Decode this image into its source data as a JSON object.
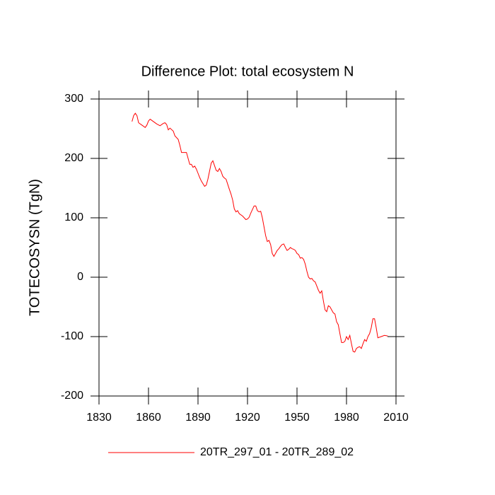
{
  "chart_data": {
    "type": "line",
    "title": "Difference Plot: total ecosystem N",
    "y_label": "TOTECOSYSN  (TgN)",
    "xlim": [
      1830,
      2010
    ],
    "xticks": [
      1830,
      1860,
      1890,
      1920,
      1950,
      1980,
      2010
    ],
    "ylim": [
      -200,
      300
    ],
    "yticks": [
      -200,
      -100,
      0,
      100,
      200,
      300
    ],
    "legend": "bottom",
    "x": [
      1850,
      1851,
      1852,
      1853,
      1854,
      1856,
      1858,
      1859,
      1860,
      1861,
      1863,
      1865,
      1867,
      1869,
      1870,
      1871,
      1872,
      1873,
      1875,
      1876,
      1878,
      1879,
      1880,
      1883,
      1884,
      1885,
      1886,
      1887,
      1888,
      1889,
      1890,
      1891,
      1892,
      1894,
      1895,
      1896,
      1898,
      1899,
      1900,
      1901,
      1902,
      1903,
      1904,
      1905,
      1906,
      1907,
      1909,
      1910,
      1911,
      1912,
      1913,
      1914,
      1915,
      1917,
      1918,
      1919,
      1920,
      1921,
      1922,
      1924,
      1925,
      1926,
      1927,
      1928,
      1929,
      1930,
      1931,
      1932,
      1933,
      1934,
      1935,
      1936,
      1937,
      1938,
      1939,
      1940,
      1941,
      1942,
      1943,
      1944,
      1945,
      1946,
      1947,
      1948,
      1949,
      1950,
      1951,
      1952,
      1953,
      1954,
      1955,
      1956,
      1957,
      1958,
      1959,
      1960,
      1961,
      1962,
      1963,
      1964,
      1965,
      1966,
      1967,
      1968,
      1969,
      1970,
      1971,
      1972,
      1973,
      1974,
      1975,
      1976,
      1977,
      1978,
      1979,
      1980,
      1981,
      1982,
      1983,
      1984,
      1985,
      1986,
      1987,
      1988,
      1989,
      1990,
      1991,
      1992,
      1993,
      1994,
      1995,
      1996,
      1997,
      1998,
      1999,
      2001,
      2003,
      2005
    ],
    "series": [
      {
        "name": "20TR_297_01 - 20TR_289_02",
        "color": "#ff0000",
        "values": [
          262,
          272,
          276,
          272,
          260,
          256,
          252,
          256,
          263,
          266,
          262,
          258,
          255,
          259,
          260,
          257,
          248,
          251,
          246,
          238,
          232,
          222,
          210,
          210,
          200,
          190,
          190,
          185,
          187,
          182,
          175,
          168,
          162,
          153,
          155,
          165,
          192,
          196,
          188,
          180,
          178,
          183,
          178,
          170,
          167,
          165,
          148,
          140,
          130,
          115,
          110,
          112,
          107,
          103,
          100,
          97,
          98,
          101,
          108,
          120,
          120,
          112,
          110,
          111,
          100,
          85,
          70,
          60,
          62,
          55,
          40,
          35,
          40,
          45,
          48,
          52,
          55,
          56,
          50,
          45,
          47,
          50,
          48,
          47,
          45,
          40,
          38,
          32,
          33,
          30,
          22,
          10,
          0,
          -3,
          -2,
          -6,
          -8,
          -15,
          -22,
          -27,
          -23,
          -40,
          -55,
          -58,
          -48,
          -50,
          -55,
          -60,
          -62,
          -75,
          -80,
          -95,
          -110,
          -110,
          -108,
          -100,
          -105,
          -98,
          -112,
          -125,
          -126,
          -120,
          -118,
          -117,
          -120,
          -112,
          -105,
          -108,
          -100,
          -95,
          -85,
          -70,
          -70,
          -85,
          -102,
          -100,
          -98,
          -99
        ]
      }
    ]
  }
}
